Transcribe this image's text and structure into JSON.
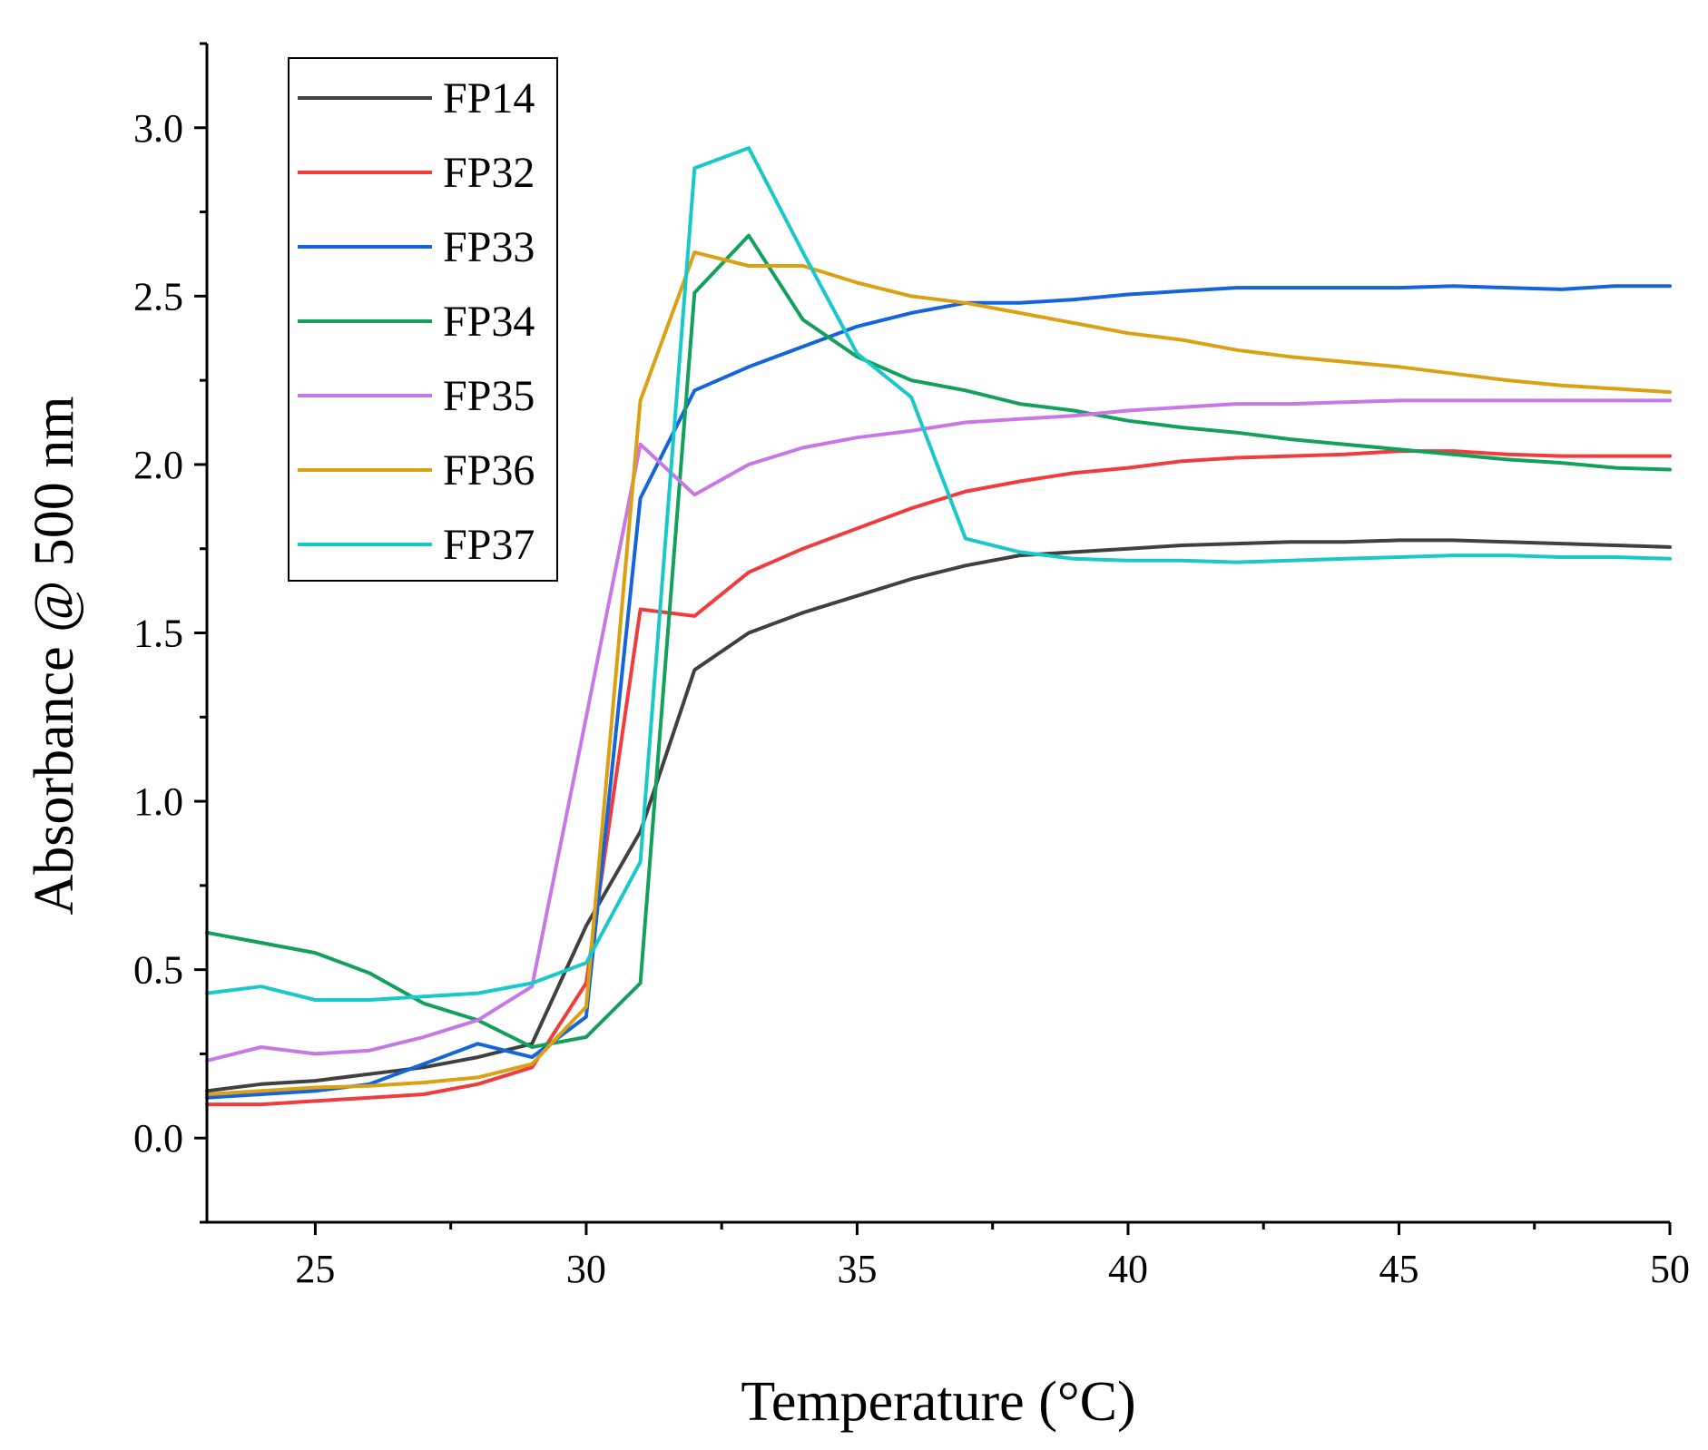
{
  "chart_data": {
    "type": "line",
    "title": "",
    "xlabel": "Temperature (°C)",
    "ylabel": "Absorbance @ 500 nm",
    "xlim": [
      23,
      50
    ],
    "ylim": [
      -0.25,
      3.25
    ],
    "xticks": [
      25,
      30,
      35,
      40,
      45,
      50
    ],
    "xtick_labels": [
      "25",
      "30",
      "35",
      "40",
      "45",
      "50"
    ],
    "yticks": [
      0.0,
      0.5,
      1.0,
      1.5,
      2.0,
      2.5,
      3.0
    ],
    "ytick_labels": [
      "0.0",
      "0.5",
      "1.0",
      "1.5",
      "2.0",
      "2.5",
      "3.0"
    ],
    "legend_position": "top-left",
    "x": [
      23,
      24,
      25,
      26,
      27,
      28,
      29,
      30,
      31,
      32,
      33,
      34,
      35,
      36,
      37,
      38,
      39,
      40,
      41,
      42,
      43,
      44,
      45,
      46,
      47,
      48,
      49,
      50
    ],
    "series": [
      {
        "name": "FP14",
        "color": "#404040",
        "values": [
          0.14,
          0.16,
          0.17,
          0.19,
          0.21,
          0.24,
          0.28,
          0.63,
          0.91,
          1.39,
          1.5,
          1.56,
          1.61,
          1.66,
          1.7,
          1.73,
          1.74,
          1.75,
          1.76,
          1.765,
          1.77,
          1.77,
          1.775,
          1.775,
          1.77,
          1.765,
          1.76,
          1.755
        ]
      },
      {
        "name": "FP32",
        "color": "#f03c3c",
        "values": [
          0.1,
          0.1,
          0.11,
          0.12,
          0.13,
          0.16,
          0.21,
          0.46,
          1.57,
          1.55,
          1.68,
          1.75,
          1.81,
          1.87,
          1.92,
          1.95,
          1.975,
          1.99,
          2.01,
          2.02,
          2.025,
          2.03,
          2.04,
          2.04,
          2.03,
          2.025,
          2.025,
          2.025
        ]
      },
      {
        "name": "FP33",
        "color": "#1464dc",
        "values": [
          0.12,
          0.13,
          0.14,
          0.16,
          0.22,
          0.28,
          0.24,
          0.36,
          1.9,
          2.22,
          2.29,
          2.35,
          2.41,
          2.45,
          2.48,
          2.48,
          2.49,
          2.505,
          2.515,
          2.525,
          2.525,
          2.525,
          2.525,
          2.53,
          2.525,
          2.52,
          2.53,
          2.53
        ]
      },
      {
        "name": "FP34",
        "color": "#12a05a",
        "values": [
          0.61,
          0.58,
          0.55,
          0.49,
          0.4,
          0.35,
          0.27,
          0.3,
          0.46,
          2.51,
          2.68,
          2.43,
          2.32,
          2.25,
          2.22,
          2.18,
          2.16,
          2.13,
          2.11,
          2.095,
          2.075,
          2.06,
          2.045,
          2.03,
          2.015,
          2.005,
          1.99,
          1.985
        ]
      },
      {
        "name": "FP35",
        "color": "#c878e6",
        "values": [
          0.23,
          0.27,
          0.25,
          0.26,
          0.3,
          0.35,
          0.45,
          1.25,
          2.06,
          1.91,
          2.0,
          2.05,
          2.08,
          2.1,
          2.125,
          2.135,
          2.145,
          2.16,
          2.17,
          2.18,
          2.18,
          2.185,
          2.19,
          2.19,
          2.19,
          2.19,
          2.19,
          2.19
        ]
      },
      {
        "name": "FP36",
        "color": "#dca014",
        "values": [
          0.13,
          0.14,
          0.15,
          0.155,
          0.165,
          0.18,
          0.22,
          0.39,
          2.19,
          2.63,
          2.59,
          2.59,
          2.54,
          2.5,
          2.48,
          2.45,
          2.42,
          2.39,
          2.37,
          2.34,
          2.32,
          2.305,
          2.29,
          2.27,
          2.25,
          2.235,
          2.225,
          2.215
        ]
      },
      {
        "name": "FP37",
        "color": "#19c8c8",
        "values": [
          0.43,
          0.45,
          0.41,
          0.41,
          0.42,
          0.43,
          0.46,
          0.52,
          0.82,
          2.88,
          2.94,
          2.63,
          2.33,
          2.2,
          1.78,
          1.74,
          1.72,
          1.715,
          1.715,
          1.71,
          1.715,
          1.72,
          1.725,
          1.73,
          1.73,
          1.725,
          1.725,
          1.72
        ]
      }
    ]
  }
}
